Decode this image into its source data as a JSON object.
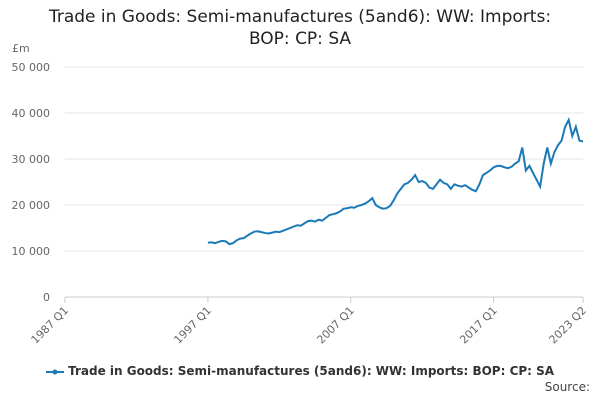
{
  "chart_data": {
    "type": "line",
    "title": "Trade in Goods: Semi-manufactures (5and6): WW: Imports: BOP: CP: SA",
    "y_label": "£m",
    "source": "Source:",
    "xlim": [
      1987,
      2023.25
    ],
    "xticks": [
      {
        "value": 1987,
        "label": "1987 Q1"
      },
      {
        "value": 1997,
        "label": "1997 Q1"
      },
      {
        "value": 2007,
        "label": "2007 Q1"
      },
      {
        "value": 2017,
        "label": "2017 Q1"
      },
      {
        "value": 2023.25,
        "label": "2023 Q2"
      }
    ],
    "ylim": [
      0,
      50000
    ],
    "yticks": [
      {
        "value": 0,
        "label": "0"
      },
      {
        "value": 10000,
        "label": "10 000"
      },
      {
        "value": 20000,
        "label": "20 000"
      },
      {
        "value": 30000,
        "label": "30 000"
      },
      {
        "value": 40000,
        "label": "40 000"
      },
      {
        "value": 50000,
        "label": "50 000"
      }
    ],
    "grid": true,
    "x": [
      1997,
      1997.25,
      1997.5,
      1997.75,
      1998,
      1998.25,
      1998.5,
      1998.75,
      1999,
      1999.25,
      1999.5,
      1999.75,
      2000,
      2000.25,
      2000.5,
      2000.75,
      2001,
      2001.25,
      2001.5,
      2001.75,
      2002,
      2002.25,
      2002.5,
      2002.75,
      2003,
      2003.25,
      2003.5,
      2003.75,
      2004,
      2004.25,
      2004.5,
      2004.75,
      2005,
      2005.25,
      2005.5,
      2005.75,
      2006,
      2006.25,
      2006.5,
      2006.75,
      2007,
      2007.25,
      2007.5,
      2007.75,
      2008,
      2008.25,
      2008.5,
      2008.75,
      2009,
      2009.25,
      2009.5,
      2009.75,
      2010,
      2010.25,
      2010.5,
      2010.75,
      2011,
      2011.25,
      2011.5,
      2011.75,
      2012,
      2012.25,
      2012.5,
      2012.75,
      2013,
      2013.25,
      2013.5,
      2013.75,
      2014,
      2014.25,
      2014.5,
      2014.75,
      2015,
      2015.25,
      2015.5,
      2015.75,
      2016,
      2016.25,
      2016.5,
      2016.75,
      2017,
      2017.25,
      2017.5,
      2017.75,
      2018,
      2018.25,
      2018.5,
      2018.75,
      2019,
      2019.25,
      2019.5,
      2019.75,
      2020,
      2020.25,
      2020.5,
      2020.75,
      2021,
      2021.25,
      2021.5,
      2021.75,
      2022,
      2022.25,
      2022.5,
      2022.75,
      2023,
      2023.25
    ],
    "series": [
      {
        "name": "Trade in Goods: Semi-manufactures (5and6): WW: Imports: BOP: CP: SA",
        "color": "#1a7ab8",
        "values": [
          11800,
          11900,
          11700,
          12000,
          12200,
          12100,
          11500,
          11700,
          12300,
          12700,
          12800,
          13300,
          13800,
          14200,
          14300,
          14100,
          13900,
          13800,
          14000,
          14200,
          14100,
          14400,
          14700,
          15000,
          15300,
          15600,
          15500,
          16000,
          16500,
          16600,
          16400,
          16800,
          16600,
          17200,
          17800,
          18000,
          18200,
          18600,
          19200,
          19300,
          19500,
          19400,
          19800,
          20000,
          20300,
          20800,
          21500,
          20000,
          19500,
          19200,
          19300,
          19800,
          21000,
          22500,
          23500,
          24500,
          24800,
          25500,
          26500,
          25000,
          25200,
          24800,
          23800,
          23500,
          24500,
          25500,
          24800,
          24500,
          23500,
          24500,
          24200,
          24000,
          24300,
          23800,
          23300,
          23000,
          24500,
          26500,
          27000,
          27500,
          28200,
          28500,
          28500,
          28200,
          28000,
          28300,
          29000,
          29500,
          32500,
          27500,
          28500,
          27000,
          25500,
          24000,
          29000,
          32500,
          29000,
          31500,
          33000,
          34000,
          37000,
          38500,
          35000,
          37000,
          34000,
          33800
        ]
      }
    ]
  }
}
